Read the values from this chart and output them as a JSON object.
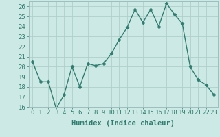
{
  "x": [
    0,
    1,
    2,
    3,
    4,
    5,
    6,
    7,
    8,
    9,
    10,
    11,
    12,
    13,
    14,
    15,
    16,
    17,
    18,
    19,
    20,
    21,
    22,
    23
  ],
  "y": [
    20.5,
    18.5,
    18.5,
    15.8,
    17.2,
    20.0,
    18.0,
    20.3,
    20.1,
    20.3,
    21.3,
    22.7,
    23.9,
    25.7,
    24.4,
    25.7,
    24.0,
    26.3,
    25.2,
    24.3,
    20.0,
    18.7,
    18.2,
    17.2
  ],
  "line_color": "#2e7d6e",
  "marker": "D",
  "marker_size": 2.5,
  "linewidth": 1.0,
  "bg_color": "#cce9e5",
  "grid_color": "#b0ceca",
  "xlabel": "Humidex (Indice chaleur)",
  "ylim": [
    16,
    26.5
  ],
  "yticks": [
    16,
    17,
    18,
    19,
    20,
    21,
    22,
    23,
    24,
    25,
    26
  ],
  "xticks": [
    0,
    1,
    2,
    3,
    4,
    5,
    6,
    7,
    8,
    9,
    10,
    11,
    12,
    13,
    14,
    15,
    16,
    17,
    18,
    19,
    20,
    21,
    22,
    23
  ],
  "xlabel_fontsize": 7.5,
  "tick_fontsize": 6.5
}
